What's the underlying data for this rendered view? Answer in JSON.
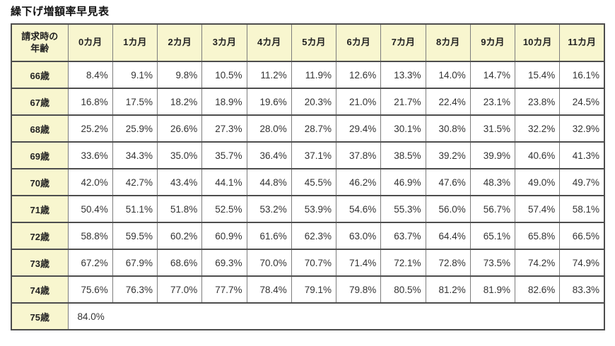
{
  "page": {
    "title": "繰下げ増額率早見表"
  },
  "table": {
    "corner_header_line1": "請求時の",
    "corner_header_line2": "年齢",
    "month_headers": [
      "0カ月",
      "1カ月",
      "2カ月",
      "3カ月",
      "4カ月",
      "5カ月",
      "6カ月",
      "7カ月",
      "8カ月",
      "9カ月",
      "10カ月",
      "11カ月"
    ],
    "rows": [
      {
        "age": "66歳",
        "values": [
          "8.4%",
          "9.1%",
          "9.8%",
          "10.5%",
          "11.2%",
          "11.9%",
          "12.6%",
          "13.3%",
          "14.0%",
          "14.7%",
          "15.4%",
          "16.1%"
        ]
      },
      {
        "age": "67歳",
        "values": [
          "16.8%",
          "17.5%",
          "18.2%",
          "18.9%",
          "19.6%",
          "20.3%",
          "21.0%",
          "21.7%",
          "22.4%",
          "23.1%",
          "23.8%",
          "24.5%"
        ]
      },
      {
        "age": "68歳",
        "values": [
          "25.2%",
          "25.9%",
          "26.6%",
          "27.3%",
          "28.0%",
          "28.7%",
          "29.4%",
          "30.1%",
          "30.8%",
          "31.5%",
          "32.2%",
          "32.9%"
        ]
      },
      {
        "age": "69歳",
        "values": [
          "33.6%",
          "34.3%",
          "35.0%",
          "35.7%",
          "36.4%",
          "37.1%",
          "37.8%",
          "38.5%",
          "39.2%",
          "39.9%",
          "40.6%",
          "41.3%"
        ]
      },
      {
        "age": "70歳",
        "values": [
          "42.0%",
          "42.7%",
          "43.4%",
          "44.1%",
          "44.8%",
          "45.5%",
          "46.2%",
          "46.9%",
          "47.6%",
          "48.3%",
          "49.0%",
          "49.7%"
        ]
      },
      {
        "age": "71歳",
        "values": [
          "50.4%",
          "51.1%",
          "51.8%",
          "52.5%",
          "53.2%",
          "53.9%",
          "54.6%",
          "55.3%",
          "56.0%",
          "56.7%",
          "57.4%",
          "58.1%"
        ]
      },
      {
        "age": "72歳",
        "values": [
          "58.8%",
          "59.5%",
          "60.2%",
          "60.9%",
          "61.6%",
          "62.3%",
          "63.0%",
          "63.7%",
          "64.4%",
          "65.1%",
          "65.8%",
          "66.5%"
        ]
      },
      {
        "age": "73歳",
        "values": [
          "67.2%",
          "67.9%",
          "68.6%",
          "69.3%",
          "70.0%",
          "70.7%",
          "71.4%",
          "72.1%",
          "72.8%",
          "73.5%",
          "74.2%",
          "74.9%"
        ]
      },
      {
        "age": "74歳",
        "values": [
          "75.6%",
          "76.3%",
          "77.0%",
          "77.7%",
          "78.4%",
          "79.1%",
          "79.8%",
          "80.5%",
          "81.2%",
          "81.9%",
          "82.6%",
          "83.3%"
        ]
      },
      {
        "age": "75歳",
        "values": [
          "84.0%"
        ]
      }
    ],
    "colors": {
      "header_bg": "#f8f6cf",
      "cell_bg": "#ffffff",
      "border": "#4d4d4d",
      "text": "#333333"
    }
  }
}
